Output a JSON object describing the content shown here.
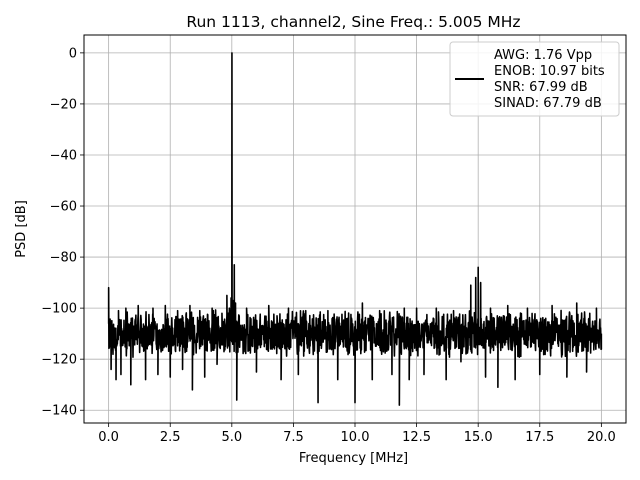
{
  "chart_data": {
    "type": "line",
    "title": "Run 1113, channel2, Sine Freq.: 5.005 MHz",
    "xlabel": "Frequency [MHz]",
    "ylabel": "PSD [dB]",
    "xlim": [
      -1.0,
      21.0
    ],
    "ylim": [
      -145,
      7
    ],
    "xticks": [
      0.0,
      2.5,
      5.0,
      7.5,
      10.0,
      12.5,
      15.0,
      17.5,
      20.0
    ],
    "xtick_labels": [
      "0.0",
      "2.5",
      "5.0",
      "7.5",
      "10.0",
      "12.5",
      "15.0",
      "17.5",
      "20.0"
    ],
    "yticks": [
      0,
      -20,
      -40,
      -60,
      -80,
      -100,
      -120,
      -140
    ],
    "ytick_labels": [
      "0",
      "−20",
      "−40",
      "−60",
      "−80",
      "−100",
      "−120",
      "−140"
    ],
    "grid": true,
    "legend_position": "top-right",
    "legend_lines": [
      "AWG: 1.76 Vpp",
      "ENOB: 10.97 bits",
      "SNR: 67.99 dB",
      "SINAD: 67.79 dB"
    ],
    "line_color": "#000000",
    "grid_color": "#b0b0b0",
    "noise_floor": {
      "median_db": -110,
      "spread_db": 7,
      "min_db": -138,
      "max_db": -96
    },
    "series": [
      {
        "values": [
          [
            0.0,
            -92
          ],
          [
            0.05,
            -110
          ],
          [
            0.1,
            -124
          ],
          [
            0.2,
            -107
          ],
          [
            0.3,
            -128
          ],
          [
            0.4,
            -101
          ],
          [
            0.5,
            -126
          ],
          [
            0.7,
            -100
          ],
          [
            0.9,
            -130
          ],
          [
            1.2,
            -99
          ],
          [
            1.5,
            -128
          ],
          [
            1.8,
            -100
          ],
          [
            2.0,
            -126
          ],
          [
            2.3,
            -99
          ],
          [
            2.5,
            -127
          ],
          [
            2.8,
            -101
          ],
          [
            3.0,
            -124
          ],
          [
            3.3,
            -99
          ],
          [
            3.4,
            -132
          ],
          [
            3.7,
            -101
          ],
          [
            3.9,
            -127
          ],
          [
            4.2,
            -100
          ],
          [
            4.4,
            -122
          ],
          [
            4.6,
            -102
          ],
          [
            4.8,
            -95
          ],
          [
            4.9,
            -100
          ],
          [
            4.97,
            -96
          ],
          [
            5.005,
            0
          ],
          [
            5.04,
            -97
          ],
          [
            5.1,
            -83
          ],
          [
            5.15,
            -98
          ],
          [
            5.2,
            -136
          ],
          [
            5.3,
            -103
          ],
          [
            5.6,
            -100
          ],
          [
            6.0,
            -125
          ],
          [
            6.5,
            -99
          ],
          [
            7.0,
            -128
          ],
          [
            7.3,
            -100
          ],
          [
            7.7,
            -126
          ],
          [
            8.0,
            -101
          ],
          [
            8.5,
            -137
          ],
          [
            8.9,
            -101
          ],
          [
            9.3,
            -128
          ],
          [
            9.6,
            -102
          ],
          [
            10.0,
            -137
          ],
          [
            10.3,
            -98
          ],
          [
            10.7,
            -128
          ],
          [
            11.0,
            -101
          ],
          [
            11.5,
            -126
          ],
          [
            11.8,
            -138
          ],
          [
            12.0,
            -100
          ],
          [
            12.2,
            -128
          ],
          [
            12.5,
            -100
          ],
          [
            12.8,
            -126
          ],
          [
            13.3,
            -100
          ],
          [
            13.7,
            -128
          ],
          [
            14.0,
            -101
          ],
          [
            14.3,
            -121
          ],
          [
            14.7,
            -91
          ],
          [
            14.9,
            -88
          ],
          [
            15.0,
            -84
          ],
          [
            15.1,
            -90
          ],
          [
            15.3,
            -127
          ],
          [
            15.5,
            -100
          ],
          [
            15.8,
            -131
          ],
          [
            16.2,
            -99
          ],
          [
            16.5,
            -128
          ],
          [
            17.0,
            -100
          ],
          [
            17.5,
            -126
          ],
          [
            18.0,
            -99
          ],
          [
            18.6,
            -127
          ],
          [
            19.0,
            -98
          ],
          [
            19.4,
            -125
          ],
          [
            19.8,
            -100
          ],
          [
            20.0,
            -110
          ]
        ]
      }
    ]
  }
}
